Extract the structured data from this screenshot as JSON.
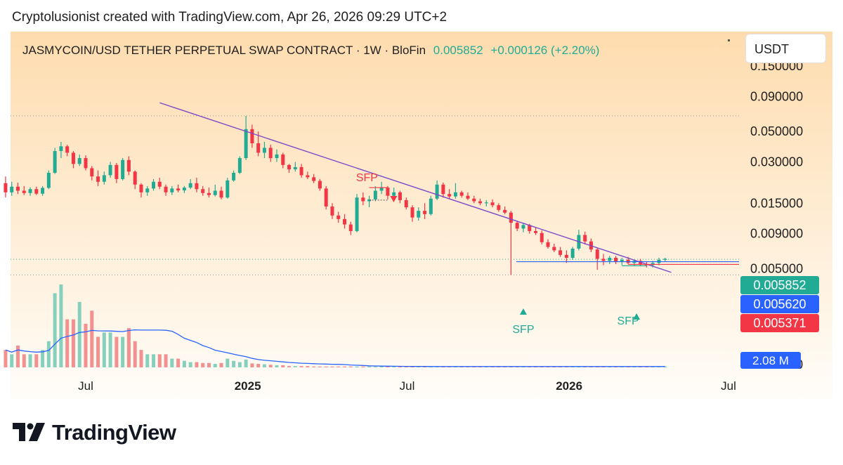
{
  "header": {
    "attribution": "Cryptolusionist created with TradingView.com, Apr 26, 2026 09:29 UTC+2"
  },
  "currency": "USDT",
  "brand": {
    "name": "TradingView"
  },
  "colors": {
    "up": "#22ab94",
    "down": "#f23645",
    "trend": "#7b47c9",
    "bg_top": "#fedcae",
    "bg_bottom": "#fffdf9",
    "green_text": "#22ab94",
    "blue": "#2962ff"
  },
  "chart_data": {
    "type": "candlestick",
    "symbol": "JASMYCOIN/USD TETHER PERPETUAL SWAP CONTRACT",
    "interval": "1W",
    "exchange": "BloFin",
    "last_price": "0.005852",
    "change": "+0.000126",
    "change_pct": "(+2.20%)",
    "y_scale": "log",
    "y_ticks": [
      "0.150000",
      "0.090000",
      "0.050000",
      "0.030000",
      "0.015000",
      "0.009000",
      "0.005000",
      "0.001000"
    ],
    "x_ticks": [
      "Jul",
      "2025",
      "Jul",
      "2026",
      "Jul"
    ],
    "price_labels": [
      {
        "value": "0.005852",
        "color": "#22ab94"
      },
      {
        "value": "0.005620",
        "color": "#2962ff"
      },
      {
        "value": "0.005371",
        "color": "#f23645"
      }
    ],
    "volume_label": "2.08 M",
    "annotations": [
      {
        "text": "SFP",
        "date": "2025-05-26",
        "color": "#f23645"
      },
      {
        "text": "SFP",
        "date": "2025-11-10",
        "color": "#22ab94"
      },
      {
        "text": "SFP",
        "date": "2026-03-09",
        "color": "#22ab94"
      }
    ],
    "trendline": {
      "from": {
        "date": "2024-09-23",
        "price": 0.081
      },
      "to": {
        "date": "2026-04-27",
        "price": 0.0047
      }
    },
    "candles": [
      {
        "d": "2024-04-01",
        "o": 0.021,
        "h": 0.0235,
        "l": 0.0165,
        "c": 0.018
      },
      {
        "d": "2024-04-08",
        "o": 0.018,
        "h": 0.0215,
        "l": 0.017,
        "c": 0.0198
      },
      {
        "d": "2024-04-15",
        "o": 0.0198,
        "h": 0.0212,
        "l": 0.0175,
        "c": 0.0185
      },
      {
        "d": "2024-04-22",
        "o": 0.0185,
        "h": 0.02,
        "l": 0.0172,
        "c": 0.0178
      },
      {
        "d": "2024-04-29",
        "o": 0.0178,
        "h": 0.0196,
        "l": 0.017,
        "c": 0.019
      },
      {
        "d": "2024-05-06",
        "o": 0.019,
        "h": 0.0198,
        "l": 0.0172,
        "c": 0.0176
      },
      {
        "d": "2024-05-13",
        "o": 0.0176,
        "h": 0.02,
        "l": 0.017,
        "c": 0.0194
      },
      {
        "d": "2024-05-20",
        "o": 0.0194,
        "h": 0.026,
        "l": 0.019,
        "c": 0.025
      },
      {
        "d": "2024-05-27",
        "o": 0.025,
        "h": 0.038,
        "l": 0.0245,
        "c": 0.036
      },
      {
        "d": "2024-06-03",
        "o": 0.036,
        "h": 0.042,
        "l": 0.032,
        "c": 0.039
      },
      {
        "d": "2024-06-10",
        "o": 0.039,
        "h": 0.04,
        "l": 0.033,
        "c": 0.035
      },
      {
        "d": "2024-06-17",
        "o": 0.035,
        "h": 0.036,
        "l": 0.027,
        "c": 0.029
      },
      {
        "d": "2024-06-24",
        "o": 0.029,
        "h": 0.034,
        "l": 0.028,
        "c": 0.032
      },
      {
        "d": "2024-07-01",
        "o": 0.032,
        "h": 0.0335,
        "l": 0.026,
        "c": 0.027
      },
      {
        "d": "2024-07-08",
        "o": 0.027,
        "h": 0.028,
        "l": 0.022,
        "c": 0.0235
      },
      {
        "d": "2024-07-15",
        "o": 0.0235,
        "h": 0.026,
        "l": 0.02,
        "c": 0.0215
      },
      {
        "d": "2024-07-22",
        "o": 0.0215,
        "h": 0.0255,
        "l": 0.0205,
        "c": 0.024
      },
      {
        "d": "2024-07-29",
        "o": 0.024,
        "h": 0.03,
        "l": 0.023,
        "c": 0.0285
      },
      {
        "d": "2024-08-05",
        "o": 0.0285,
        "h": 0.0295,
        "l": 0.021,
        "c": 0.0225
      },
      {
        "d": "2024-08-12",
        "o": 0.0225,
        "h": 0.032,
        "l": 0.022,
        "c": 0.031
      },
      {
        "d": "2024-08-19",
        "o": 0.031,
        "h": 0.033,
        "l": 0.024,
        "c": 0.0255
      },
      {
        "d": "2024-08-26",
        "o": 0.0255,
        "h": 0.026,
        "l": 0.019,
        "c": 0.0205
      },
      {
        "d": "2024-09-02",
        "o": 0.0205,
        "h": 0.021,
        "l": 0.0165,
        "c": 0.018
      },
      {
        "d": "2024-09-09",
        "o": 0.018,
        "h": 0.02,
        "l": 0.017,
        "c": 0.0192
      },
      {
        "d": "2024-09-16",
        "o": 0.0192,
        "h": 0.0225,
        "l": 0.0185,
        "c": 0.0215
      },
      {
        "d": "2024-09-23",
        "o": 0.0215,
        "h": 0.023,
        "l": 0.019,
        "c": 0.0198
      },
      {
        "d": "2024-09-30",
        "o": 0.0198,
        "h": 0.0205,
        "l": 0.017,
        "c": 0.018
      },
      {
        "d": "2024-10-07",
        "o": 0.018,
        "h": 0.02,
        "l": 0.0172,
        "c": 0.0192
      },
      {
        "d": "2024-10-14",
        "o": 0.0192,
        "h": 0.0205,
        "l": 0.018,
        "c": 0.0186
      },
      {
        "d": "2024-10-21",
        "o": 0.0186,
        "h": 0.02,
        "l": 0.0178,
        "c": 0.0195
      },
      {
        "d": "2024-10-28",
        "o": 0.0195,
        "h": 0.0225,
        "l": 0.019,
        "c": 0.021
      },
      {
        "d": "2024-11-04",
        "o": 0.021,
        "h": 0.023,
        "l": 0.018,
        "c": 0.019
      },
      {
        "d": "2024-11-11",
        "o": 0.019,
        "h": 0.02,
        "l": 0.017,
        "c": 0.0178
      },
      {
        "d": "2024-11-18",
        "o": 0.0178,
        "h": 0.0195,
        "l": 0.0165,
        "c": 0.0172
      },
      {
        "d": "2024-11-25",
        "o": 0.0172,
        "h": 0.0205,
        "l": 0.0168,
        "c": 0.0185
      },
      {
        "d": "2024-12-02",
        "o": 0.0185,
        "h": 0.0198,
        "l": 0.016,
        "c": 0.0165
      },
      {
        "d": "2024-12-09",
        "o": 0.0165,
        "h": 0.023,
        "l": 0.0162,
        "c": 0.022
      },
      {
        "d": "2024-12-16",
        "o": 0.022,
        "h": 0.026,
        "l": 0.0215,
        "c": 0.025
      },
      {
        "d": "2024-12-23",
        "o": 0.025,
        "h": 0.033,
        "l": 0.0245,
        "c": 0.032
      },
      {
        "d": "2024-12-30",
        "o": 0.032,
        "h": 0.065,
        "l": 0.031,
        "c": 0.052
      },
      {
        "d": "2025-01-06",
        "o": 0.052,
        "h": 0.056,
        "l": 0.038,
        "c": 0.041
      },
      {
        "d": "2025-01-13",
        "o": 0.041,
        "h": 0.05,
        "l": 0.033,
        "c": 0.035
      },
      {
        "d": "2025-01-20",
        "o": 0.035,
        "h": 0.042,
        "l": 0.032,
        "c": 0.038
      },
      {
        "d": "2025-01-27",
        "o": 0.038,
        "h": 0.04,
        "l": 0.03,
        "c": 0.032
      },
      {
        "d": "2025-02-03",
        "o": 0.032,
        "h": 0.037,
        "l": 0.03,
        "c": 0.034
      },
      {
        "d": "2025-02-10",
        "o": 0.034,
        "h": 0.035,
        "l": 0.027,
        "c": 0.0285
      },
      {
        "d": "2025-02-17",
        "o": 0.0285,
        "h": 0.029,
        "l": 0.025,
        "c": 0.0265
      },
      {
        "d": "2025-02-24",
        "o": 0.0265,
        "h": 0.03,
        "l": 0.0255,
        "c": 0.0275
      },
      {
        "d": "2025-03-03",
        "o": 0.0275,
        "h": 0.029,
        "l": 0.023,
        "c": 0.024
      },
      {
        "d": "2025-03-10",
        "o": 0.024,
        "h": 0.0255,
        "l": 0.0225,
        "c": 0.0232
      },
      {
        "d": "2025-03-17",
        "o": 0.0232,
        "h": 0.0245,
        "l": 0.021,
        "c": 0.0218
      },
      {
        "d": "2025-03-24",
        "o": 0.0218,
        "h": 0.0225,
        "l": 0.0185,
        "c": 0.0192
      },
      {
        "d": "2025-03-31",
        "o": 0.0192,
        "h": 0.02,
        "l": 0.0135,
        "c": 0.0142
      },
      {
        "d": "2025-04-07",
        "o": 0.0142,
        "h": 0.015,
        "l": 0.0115,
        "c": 0.0122
      },
      {
        "d": "2025-04-14",
        "o": 0.0122,
        "h": 0.013,
        "l": 0.0108,
        "c": 0.0115
      },
      {
        "d": "2025-04-21",
        "o": 0.0115,
        "h": 0.0125,
        "l": 0.0098,
        "c": 0.0105
      },
      {
        "d": "2025-04-28",
        "o": 0.0105,
        "h": 0.011,
        "l": 0.0088,
        "c": 0.0094
      },
      {
        "d": "2025-05-05",
        "o": 0.0094,
        "h": 0.0175,
        "l": 0.0092,
        "c": 0.0165
      },
      {
        "d": "2025-05-12",
        "o": 0.0165,
        "h": 0.018,
        "l": 0.0145,
        "c": 0.0155
      },
      {
        "d": "2025-05-19",
        "o": 0.0155,
        "h": 0.017,
        "l": 0.014,
        "c": 0.016
      },
      {
        "d": "2025-05-26",
        "o": 0.016,
        "h": 0.02,
        "l": 0.0155,
        "c": 0.0185
      },
      {
        "d": "2025-06-02",
        "o": 0.0185,
        "h": 0.0215,
        "l": 0.0175,
        "c": 0.0195
      },
      {
        "d": "2025-06-09",
        "o": 0.0195,
        "h": 0.02,
        "l": 0.016,
        "c": 0.017
      },
      {
        "d": "2025-06-16",
        "o": 0.017,
        "h": 0.0195,
        "l": 0.0165,
        "c": 0.018
      },
      {
        "d": "2025-06-23",
        "o": 0.018,
        "h": 0.0185,
        "l": 0.015,
        "c": 0.0158
      },
      {
        "d": "2025-06-30",
        "o": 0.0158,
        "h": 0.0165,
        "l": 0.0135,
        "c": 0.014
      },
      {
        "d": "2025-07-07",
        "o": 0.014,
        "h": 0.0145,
        "l": 0.011,
        "c": 0.0118
      },
      {
        "d": "2025-07-14",
        "o": 0.0118,
        "h": 0.014,
        "l": 0.0112,
        "c": 0.0132
      },
      {
        "d": "2025-07-21",
        "o": 0.0132,
        "h": 0.015,
        "l": 0.0115,
        "c": 0.0125
      },
      {
        "d": "2025-07-28",
        "o": 0.0125,
        "h": 0.017,
        "l": 0.0122,
        "c": 0.0162
      },
      {
        "d": "2025-08-04",
        "o": 0.0162,
        "h": 0.022,
        "l": 0.0158,
        "c": 0.0205
      },
      {
        "d": "2025-08-11",
        "o": 0.0205,
        "h": 0.0212,
        "l": 0.0165,
        "c": 0.0175
      },
      {
        "d": "2025-08-18",
        "o": 0.0175,
        "h": 0.019,
        "l": 0.016,
        "c": 0.0168
      },
      {
        "d": "2025-08-25",
        "o": 0.0168,
        "h": 0.021,
        "l": 0.0162,
        "c": 0.018
      },
      {
        "d": "2025-09-01",
        "o": 0.018,
        "h": 0.0185,
        "l": 0.0165,
        "c": 0.017
      },
      {
        "d": "2025-09-08",
        "o": 0.017,
        "h": 0.018,
        "l": 0.0158,
        "c": 0.0162
      },
      {
        "d": "2025-09-15",
        "o": 0.0162,
        "h": 0.017,
        "l": 0.015,
        "c": 0.0155
      },
      {
        "d": "2025-09-22",
        "o": 0.0155,
        "h": 0.0162,
        "l": 0.0145,
        "c": 0.015
      },
      {
        "d": "2025-09-29",
        "o": 0.015,
        "h": 0.0158,
        "l": 0.0142,
        "c": 0.0152
      },
      {
        "d": "2025-10-06",
        "o": 0.0152,
        "h": 0.016,
        "l": 0.014,
        "c": 0.0145
      },
      {
        "d": "2025-10-13",
        "o": 0.0145,
        "h": 0.015,
        "l": 0.013,
        "c": 0.0134
      },
      {
        "d": "2025-10-20",
        "o": 0.0134,
        "h": 0.0142,
        "l": 0.0125,
        "c": 0.0128
      },
      {
        "d": "2025-10-27",
        "o": 0.0128,
        "h": 0.0132,
        "l": 0.0045,
        "c": 0.0108
      },
      {
        "d": "2025-11-03",
        "o": 0.0108,
        "h": 0.0112,
        "l": 0.0094,
        "c": 0.0098
      },
      {
        "d": "2025-11-10",
        "o": 0.0098,
        "h": 0.0108,
        "l": 0.0092,
        "c": 0.0104
      },
      {
        "d": "2025-11-17",
        "o": 0.0104,
        "h": 0.0106,
        "l": 0.009,
        "c": 0.0094
      },
      {
        "d": "2025-11-24",
        "o": 0.0094,
        "h": 0.01,
        "l": 0.0088,
        "c": 0.0091
      },
      {
        "d": "2025-12-01",
        "o": 0.0091,
        "h": 0.0095,
        "l": 0.0075,
        "c": 0.0078
      },
      {
        "d": "2025-12-08",
        "o": 0.0078,
        "h": 0.0082,
        "l": 0.007,
        "c": 0.0072
      },
      {
        "d": "2025-12-15",
        "o": 0.0072,
        "h": 0.0076,
        "l": 0.0066,
        "c": 0.0068
      },
      {
        "d": "2025-12-22",
        "o": 0.0068,
        "h": 0.0072,
        "l": 0.0061,
        "c": 0.0063
      },
      {
        "d": "2025-12-29",
        "o": 0.0063,
        "h": 0.0068,
        "l": 0.0055,
        "c": 0.006
      },
      {
        "d": "2026-01-05",
        "o": 0.006,
        "h": 0.0072,
        "l": 0.0058,
        "c": 0.007
      },
      {
        "d": "2026-01-12",
        "o": 0.007,
        "h": 0.0096,
        "l": 0.0068,
        "c": 0.0088
      },
      {
        "d": "2026-01-19",
        "o": 0.0088,
        "h": 0.0093,
        "l": 0.0075,
        "c": 0.0079
      },
      {
        "d": "2026-01-26",
        "o": 0.0079,
        "h": 0.0083,
        "l": 0.0066,
        "c": 0.0069
      },
      {
        "d": "2026-02-02",
        "o": 0.0069,
        "h": 0.0071,
        "l": 0.0049,
        "c": 0.0059
      },
      {
        "d": "2026-02-09",
        "o": 0.0059,
        "h": 0.0064,
        "l": 0.0053,
        "c": 0.0057
      },
      {
        "d": "2026-02-16",
        "o": 0.0057,
        "h": 0.0062,
        "l": 0.0054,
        "c": 0.006
      },
      {
        "d": "2026-02-23",
        "o": 0.006,
        "h": 0.0062,
        "l": 0.0054,
        "c": 0.0056
      },
      {
        "d": "2026-03-02",
        "o": 0.0056,
        "h": 0.006,
        "l": 0.0053,
        "c": 0.0058
      },
      {
        "d": "2026-03-09",
        "o": 0.0058,
        "h": 0.0061,
        "l": 0.0054,
        "c": 0.0055
      },
      {
        "d": "2026-03-16",
        "o": 0.0055,
        "h": 0.0058,
        "l": 0.0052,
        "c": 0.0057
      },
      {
        "d": "2026-03-23",
        "o": 0.0057,
        "h": 0.0059,
        "l": 0.0052,
        "c": 0.0054
      },
      {
        "d": "2026-03-30",
        "o": 0.0054,
        "h": 0.0056,
        "l": 0.0051,
        "c": 0.0053
      },
      {
        "d": "2026-04-06",
        "o": 0.0053,
        "h": 0.0057,
        "l": 0.0051,
        "c": 0.0055
      },
      {
        "d": "2026-04-13",
        "o": 0.0055,
        "h": 0.006,
        "l": 0.0053,
        "c": 0.0058
      },
      {
        "d": "2026-04-20",
        "o": 0.0058,
        "h": 0.006,
        "l": 0.0056,
        "c": 0.0059
      }
    ],
    "volume": [
      4,
      3,
      5,
      3,
      3,
      3,
      4,
      6,
      17,
      19,
      11,
      11,
      15,
      10,
      13,
      7,
      8,
      8,
      7,
      7,
      9,
      6,
      4,
      3,
      3,
      3,
      3,
      2,
      2,
      1.5,
      1.2,
      1.2,
      1,
      1,
      0.8,
      1,
      2,
      1.5,
      1.2,
      1.8,
      0.9,
      0.8,
      0.7,
      0.6,
      0.5,
      0.5,
      0.3,
      0.3,
      0.3,
      0.3,
      0.2,
      0.2,
      0.2,
      0.2,
      0.2,
      0.2,
      0.2,
      0.2,
      0.2,
      0.2,
      0.2,
      0.2,
      0.2,
      0.2,
      0.2,
      0.2,
      0.2,
      0.2,
      0.2,
      0.2,
      0.2,
      0.2,
      0.2,
      0.2,
      0.2,
      0.2,
      0.2,
      0.2,
      0.2,
      0.2,
      0.2,
      0.2,
      0.2,
      0.2,
      0.2,
      0.2,
      0.2,
      0.2,
      0.2,
      0.2,
      0.2,
      0.2,
      0.2,
      0.2,
      0.2,
      0.2,
      0.2,
      0.2,
      0.2,
      0.2,
      0.2,
      0.2,
      0.2,
      0.2,
      0.2,
      0.2,
      0.2,
      0.2,
      0.2
    ]
  }
}
